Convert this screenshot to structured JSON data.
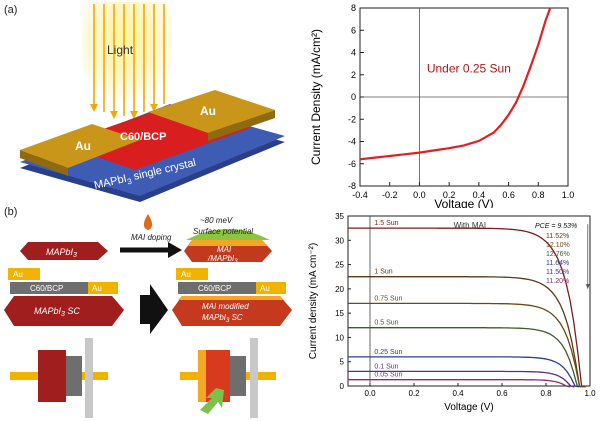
{
  "panel_a": {
    "label": "(a)",
    "device": {
      "light_label": "Light",
      "left_contact": "Au",
      "middle_layer": "C60/BCP",
      "right_contact": "Au",
      "substrate_label": "MAPbI",
      "substrate_sub": "3",
      "substrate_suffix": " single crystal"
    }
  },
  "panel_b": {
    "label": "(b)",
    "top_left_crystal": {
      "text": "MAPbI",
      "sub": "3"
    },
    "doping_label": "MAI doping",
    "top_right_crystal": {
      "line1": "MAI",
      "line2_pre": "/MAPbI",
      "line2_sub": "3"
    },
    "surface_note_1": "~80 meV",
    "surface_note_2": "Surface potential",
    "left_device": {
      "au_left": "Au",
      "au_right": "Au",
      "layer": "C60/BCP",
      "crystal": "MAPbI",
      "crystal_sub": "3",
      "crystal_suffix": " SC"
    },
    "right_device": {
      "au_left": "Au",
      "au_right": "Au",
      "layer": "C60/BCP",
      "crystal_line1": "MAI modified",
      "crystal_line2": "MAPbI",
      "crystal_line2_sub": "3",
      "crystal_line2_suffix": " SC"
    }
  },
  "colors": {
    "crystal_red": "#a01e1e",
    "gold": "#f0b400",
    "gray_layer": "#6e6e6e",
    "green_arrow": "#7dc04b",
    "chart_a_line": "#e02020"
  },
  "chart_data": [
    {
      "type": "line",
      "title": "",
      "annotation": "Under 0.25 Sun",
      "xlabel": "Voltage (V)",
      "ylabel": "Current Density (mA/cm²)",
      "xlim": [
        -0.4,
        1.0
      ],
      "ylim": [
        -8,
        8
      ],
      "xticks": [
        "-0.4",
        "-0.2",
        "0.0",
        "0.2",
        "0.4",
        "0.6",
        "0.8",
        "1.0"
      ],
      "yticks": [
        "-8",
        "-6",
        "-4",
        "-2",
        "0",
        "2",
        "4",
        "6",
        "8"
      ],
      "grid": false,
      "series": [
        {
          "x": [
            -0.4,
            -0.3,
            -0.2,
            -0.1,
            0.0,
            0.1,
            0.2,
            0.3,
            0.4,
            0.5,
            0.55,
            0.6,
            0.65,
            0.7,
            0.75,
            0.8,
            0.85,
            0.88
          ],
          "y": [
            -5.6,
            -5.45,
            -5.3,
            -5.15,
            -5.0,
            -4.8,
            -4.6,
            -4.35,
            -3.95,
            -3.2,
            -2.5,
            -1.6,
            -0.5,
            1.0,
            2.8,
            4.7,
            6.9,
            8.0
          ]
        }
      ]
    },
    {
      "type": "line",
      "title": "",
      "annotation": "With MAI",
      "xlabel": "Voltage (V)",
      "ylabel": "Current density (mA cm⁻²)",
      "xlim": [
        -0.1,
        1.0
      ],
      "ylim": [
        0,
        35
      ],
      "xticks": [
        "0.0",
        "0.2",
        "0.4",
        "0.6",
        "0.8",
        "1.0"
      ],
      "yticks": [
        "0",
        "5",
        "10",
        "15",
        "20",
        "25",
        "30",
        "35"
      ],
      "grid": false,
      "pce_title": "PCE = 9.53%",
      "pce_values": [
        "11.52%",
        "12.10%",
        "12.76%",
        "11.64%",
        "11.50%",
        "11.20%"
      ],
      "series": [
        {
          "name": "1.5 Sun",
          "color": "#7b1e1e",
          "jsc": 32.5,
          "voc": 0.96,
          "k": 0.26
        },
        {
          "name": "1 Sun",
          "color": "#5a3a1a",
          "jsc": 22.5,
          "voc": 0.95,
          "k": 0.25
        },
        {
          "name": "0.75 Sun",
          "color": "#6b4a12",
          "jsc": 17.0,
          "voc": 0.95,
          "k": 0.24
        },
        {
          "name": "0.5 Sun",
          "color": "#3e5b2a",
          "jsc": 12.0,
          "voc": 0.94,
          "k": 0.22
        },
        {
          "name": "0.25 Sun",
          "color": "#2b3f8f",
          "jsc": 6.0,
          "voc": 0.93,
          "k": 0.2
        },
        {
          "name": "0.1 Sun",
          "color": "#5a2f8a",
          "jsc": 3.0,
          "voc": 0.91,
          "k": 0.18
        },
        {
          "name": "0.05 Sun",
          "color": "#8a2f6a",
          "jsc": 1.3,
          "voc": 0.89,
          "k": 0.16
        }
      ]
    }
  ]
}
